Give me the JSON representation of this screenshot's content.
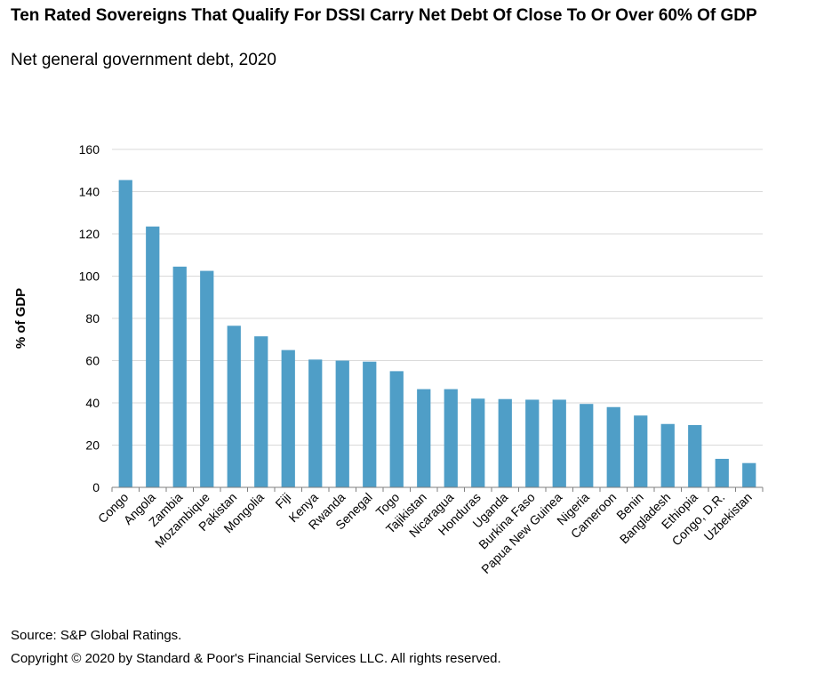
{
  "title": "Ten Rated Sovereigns That Qualify For DSSI Carry Net Debt Of Close To Or Over 60% Of GDP",
  "subtitle": "Net general government debt, 2020",
  "source": "Source: S&P Global Ratings.",
  "copyright": "Copyright © 2020 by Standard & Poor's Financial Services LLC. All rights reserved.",
  "colors": {
    "bar": "#4f9ec7",
    "grid": "#d9d9d9",
    "axis": "#7f7f7f"
  },
  "chart_data": {
    "type": "bar",
    "title": "Ten Rated Sovereigns That Qualify For DSSI Carry Net Debt Of Close To Or Over 60% Of GDP",
    "subtitle": "Net general government debt, 2020",
    "xlabel": "",
    "ylabel": "% of GDP",
    "ylim": [
      0,
      160
    ],
    "yticks": [
      0,
      20,
      40,
      60,
      80,
      100,
      120,
      140,
      160
    ],
    "grid": true,
    "categories": [
      "Congo",
      "Angola",
      "Zambia",
      "Mozambique",
      "Pakistan",
      "Mongolia",
      "Fiji",
      "Kenya",
      "Rwanda",
      "Senegal",
      "Togo",
      "Tajikistan",
      "Nicaragua",
      "Honduras",
      "Uganda",
      "Burkina Faso",
      "Papua New Guinea",
      "Nigeria",
      "Cameroon",
      "Benin",
      "Bangladesh",
      "Ethiopia",
      "Congo, D.R.",
      "Uzbekistan"
    ],
    "values": [
      145.5,
      123.5,
      104.5,
      102.5,
      76.5,
      71.5,
      65,
      60.5,
      60,
      59.5,
      55,
      46.5,
      46.5,
      42,
      41.8,
      41.5,
      41.5,
      39.5,
      38,
      34,
      30,
      29.5,
      13.5,
      11.5
    ]
  }
}
